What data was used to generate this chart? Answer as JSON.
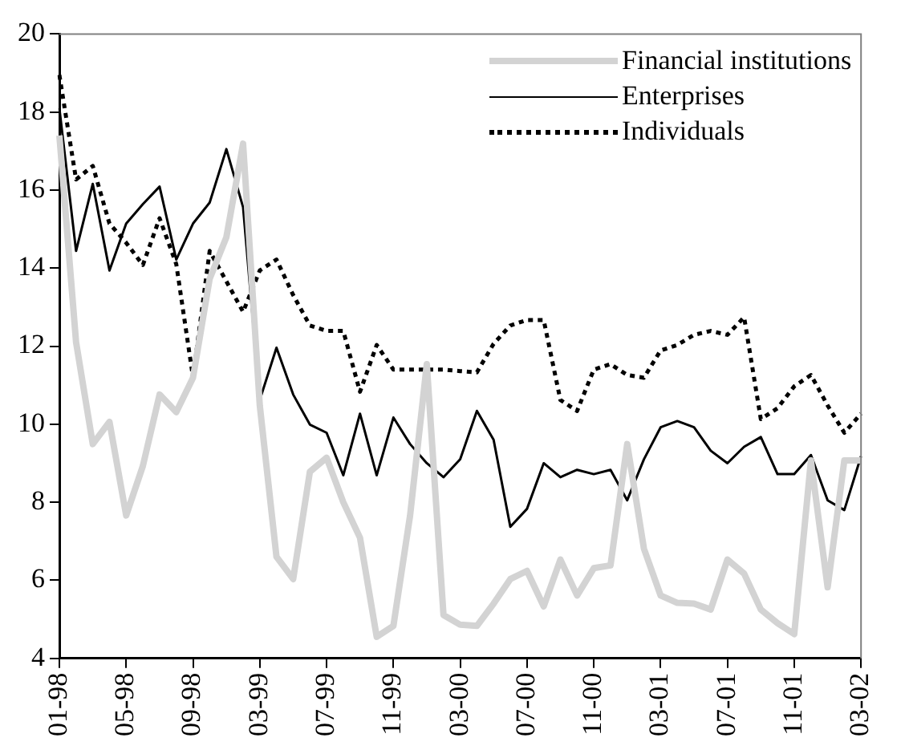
{
  "chart_data": {
    "type": "line",
    "categories": [
      "01-98",
      null,
      null,
      null,
      "05-98",
      null,
      null,
      null,
      "09-98",
      null,
      null,
      null,
      "03-99",
      null,
      null,
      null,
      "07-99",
      null,
      null,
      null,
      "11-99",
      null,
      null,
      null,
      "03-00",
      null,
      null,
      null,
      "07-00",
      null,
      null,
      null,
      "11-00",
      null,
      null,
      null,
      "03-01",
      null,
      null,
      null,
      "07-01",
      null,
      null,
      null,
      "11-01",
      null,
      null,
      null,
      "03-02"
    ],
    "ylim": [
      4,
      20
    ],
    "yticks": [
      4,
      6,
      8,
      10,
      12,
      14,
      16,
      18,
      20
    ],
    "grid": false,
    "legend": "top right",
    "marker": "none",
    "series": [
      {
        "name": "Financial institutions",
        "color": "#d3d3d3",
        "line_style": "solid",
        "values": [
          17.4,
          12.1,
          9.49,
          10.06,
          7.66,
          8.93,
          10.76,
          10.31,
          11.19,
          13.73,
          14.79,
          17.19,
          10.48,
          6.6,
          6.03,
          8.78,
          9.14,
          8.0,
          7.09,
          4.55,
          4.83,
          7.66,
          11.54,
          5.11,
          4.86,
          4.83,
          5.4,
          6.03,
          6.24,
          5.33,
          6.53,
          5.61,
          6.31,
          6.38,
          9.49,
          6.81,
          5.61,
          5.42,
          5.4,
          5.25,
          6.53,
          6.17,
          5.25,
          4.9,
          4.62,
          9.07,
          5.82,
          9.07,
          9.07
        ]
      },
      {
        "name": "Enterprises",
        "color": "#000000",
        "line_style": "solid",
        "values": [
          18.1,
          14.44,
          16.16,
          13.94,
          15.14,
          15.64,
          16.09,
          14.22,
          15.14,
          15.68,
          17.05,
          15.56,
          10.62,
          11.96,
          10.76,
          9.99,
          9.78,
          8.69,
          10.27,
          8.69,
          10.17,
          9.49,
          9.0,
          8.64,
          9.1,
          10.34,
          9.6,
          7.37,
          7.83,
          9.0,
          8.64,
          8.83,
          8.72,
          8.83,
          8.05,
          9.1,
          9.92,
          10.08,
          9.92,
          9.32,
          9.0,
          9.42,
          9.67,
          8.72,
          8.72,
          9.21,
          8.05,
          7.8,
          9.18
        ]
      },
      {
        "name": "Individuals",
        "color": "#000000",
        "line_style": "dotted",
        "values": [
          18.95,
          16.27,
          16.62,
          15.14,
          14.65,
          14.08,
          15.28,
          14.1,
          11.2,
          14.44,
          13.66,
          12.88,
          13.94,
          14.22,
          13.31,
          12.53,
          12.39,
          12.39,
          10.83,
          12.03,
          11.4,
          11.4,
          11.4,
          11.4,
          11.36,
          11.33,
          12.06,
          12.53,
          12.67,
          12.67,
          10.62,
          10.34,
          11.4,
          11.54,
          11.26,
          11.19,
          11.89,
          12.03,
          12.29,
          12.39,
          12.29,
          12.74,
          10.13,
          10.41,
          10.97,
          11.26,
          10.48,
          9.78,
          10.27
        ]
      }
    ]
  }
}
